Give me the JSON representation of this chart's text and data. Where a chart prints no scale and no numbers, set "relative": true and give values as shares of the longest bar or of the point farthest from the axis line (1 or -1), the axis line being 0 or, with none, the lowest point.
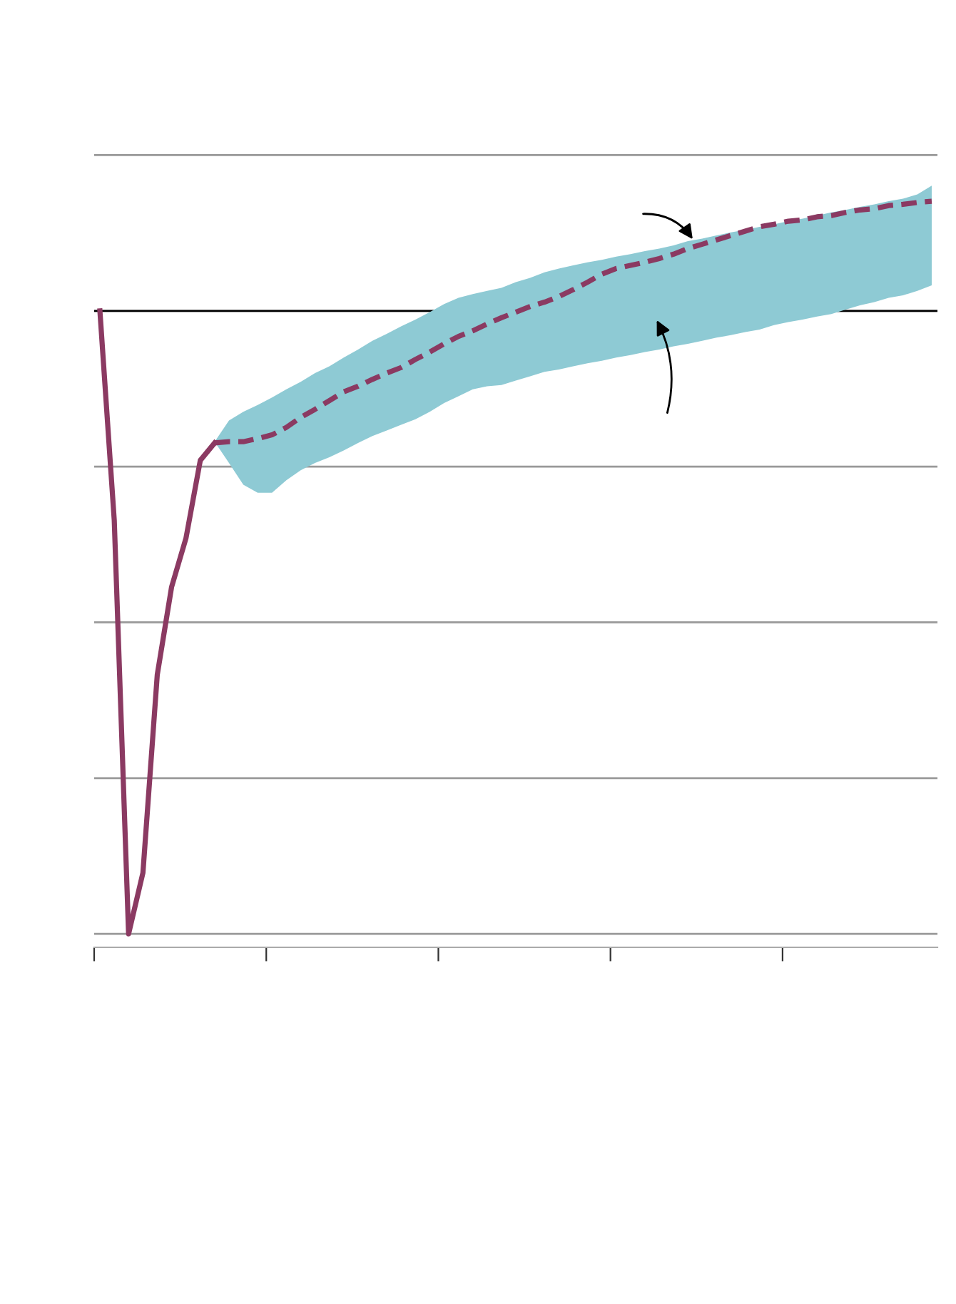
{
  "chart_data": {
    "type": "line",
    "relative": true,
    "grid": "y",
    "categories": [
      null,
      null,
      null,
      null,
      null,
      null,
      null,
      null,
      null,
      null,
      null,
      null,
      null,
      null,
      null,
      null,
      null,
      null,
      null,
      null,
      null,
      null,
      null,
      null,
      null,
      null,
      null,
      null,
      null,
      null,
      null,
      null,
      null,
      null,
      null,
      null,
      null,
      null,
      null,
      null,
      null,
      null,
      null,
      null,
      null,
      null,
      null,
      null,
      null,
      null,
      null,
      null,
      null,
      null,
      null,
      null,
      null,
      null,
      null
    ],
    "series": [
      {
        "color": "#8b3a62",
        "line_style": "solid",
        "values": [
          0,
          -0.336,
          -1,
          -0.902,
          -0.584,
          -0.443,
          -0.365,
          -0.24,
          -0.212,
          null,
          null,
          null,
          null,
          null,
          null,
          null,
          null,
          null,
          null,
          null,
          null,
          null,
          null,
          null,
          null,
          null,
          null,
          null,
          null,
          null,
          null,
          null,
          null,
          null,
          null,
          null,
          null,
          null,
          null,
          null,
          null,
          null,
          null,
          null,
          null,
          null,
          null,
          null,
          null,
          null,
          null,
          null,
          null,
          null,
          null,
          null,
          null,
          null,
          null
        ]
      },
      {
        "color": "#8b3a62",
        "line_style": "dashed",
        "values": [
          null,
          null,
          null,
          null,
          null,
          null,
          null,
          null,
          -0.212,
          -0.21,
          -0.21,
          -0.205,
          -0.199,
          -0.187,
          -0.171,
          -0.158,
          -0.144,
          -0.13,
          -0.121,
          -0.11,
          -0.1,
          -0.091,
          -0.078,
          -0.066,
          -0.053,
          -0.041,
          -0.032,
          -0.021,
          -0.011,
          -0.002,
          0.007,
          0.014,
          0.023,
          0.034,
          0.046,
          0.059,
          0.068,
          0.073,
          0.078,
          0.084,
          0.091,
          0.1,
          0.107,
          0.114,
          0.121,
          0.128,
          0.135,
          0.139,
          0.144,
          0.146,
          0.151,
          0.153,
          0.158,
          0.162,
          0.164,
          0.169,
          0.171,
          0.174,
          0.176
        ],
        "upper": [
          null,
          null,
          null,
          null,
          null,
          null,
          null,
          null,
          -0.21,
          -0.176,
          -0.162,
          -0.151,
          -0.139,
          -0.126,
          -0.114,
          -0.1,
          -0.089,
          -0.075,
          -0.062,
          -0.048,
          -0.037,
          -0.025,
          -0.014,
          -0.002,
          0.011,
          0.021,
          0.027,
          0.032,
          0.037,
          0.046,
          0.053,
          0.062,
          0.068,
          0.073,
          0.078,
          0.082,
          0.087,
          0.091,
          0.096,
          0.1,
          0.105,
          0.112,
          0.116,
          0.121,
          0.126,
          0.13,
          0.135,
          0.139,
          0.144,
          0.148,
          0.153,
          0.158,
          0.162,
          0.167,
          0.171,
          0.176,
          0.18,
          0.187,
          0.201
        ],
        "lower": [
          null,
          null,
          null,
          null,
          null,
          null,
          null,
          null,
          -0.21,
          -0.244,
          -0.279,
          -0.292,
          -0.292,
          -0.272,
          -0.256,
          -0.244,
          -0.235,
          -0.224,
          -0.212,
          -0.201,
          -0.192,
          -0.183,
          -0.174,
          -0.162,
          -0.148,
          -0.137,
          -0.126,
          -0.121,
          -0.119,
          -0.112,
          -0.105,
          -0.098,
          -0.094,
          -0.089,
          -0.084,
          -0.08,
          -0.075,
          -0.071,
          -0.066,
          -0.062,
          -0.057,
          -0.053,
          -0.048,
          -0.043,
          -0.039,
          -0.034,
          -0.03,
          -0.023,
          -0.018,
          -0.014,
          -0.009,
          -0.005,
          0.002,
          0.009,
          0.014,
          0.021,
          0.025,
          0.032,
          0.041
        ]
      }
    ]
  }
}
